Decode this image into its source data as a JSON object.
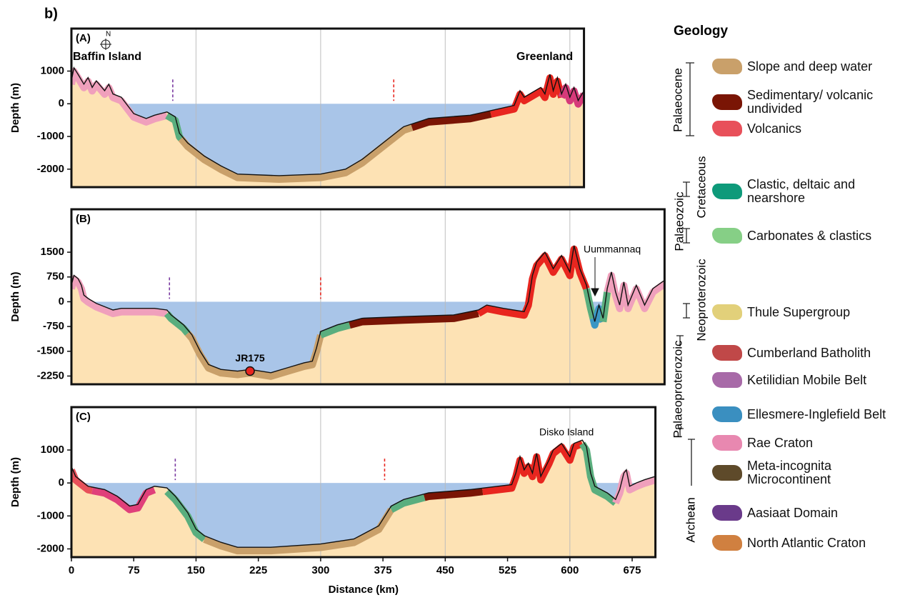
{
  "figure_label": "b)",
  "chart_data": [
    {
      "type": "profile",
      "title": "(A)",
      "ylabel": "Depth (m)",
      "annotations": [
        "N",
        "Baffin Island",
        "Greenland"
      ],
      "xlim": [
        0,
        617
      ],
      "ylim": [
        -2550,
        2300
      ],
      "yticks": [
        -2000,
        -1000,
        0,
        1000
      ],
      "xgrid": [
        150,
        300,
        450,
        600
      ],
      "x": [
        0,
        3,
        8,
        15,
        20,
        25,
        30,
        40,
        45,
        50,
        60,
        75,
        90,
        100,
        115,
        125,
        130,
        140,
        160,
        180,
        200,
        250,
        300,
        330,
        350,
        380,
        400,
        430,
        480,
        533,
        540,
        545,
        555,
        565,
        570,
        576,
        580,
        585,
        590,
        595,
        600,
        605,
        610,
        617
      ],
      "values": [
        700,
        1100,
        900,
        600,
        800,
        500,
        700,
        400,
        600,
        300,
        200,
        -300,
        -450,
        -350,
        -250,
        -400,
        -900,
        -1200,
        -1600,
        -1900,
        -2150,
        -2200,
        -2150,
        -2000,
        -1700,
        -1100,
        -700,
        -450,
        -350,
        -50,
        400,
        200,
        350,
        500,
        300,
        900,
        400,
        800,
        300,
        600,
        200,
        500,
        100,
        400
      ],
      "segments": [
        {
          "x": [
            0,
            115
          ],
          "color": "#f0a0bc"
        },
        {
          "x": [
            115,
            132
          ],
          "color": "#5aae7e"
        },
        {
          "x": [
            132,
            410
          ],
          "color": "#c9a06a"
        },
        {
          "x": [
            410,
            505
          ],
          "color": "#7a1505"
        },
        {
          "x": [
            505,
            590
          ],
          "color": "#e8261f"
        },
        {
          "x": [
            590,
            617
          ],
          "color": "#d63a7a"
        }
      ],
      "markers": [
        {
          "x": 122,
          "color": "#7a3aa0"
        },
        {
          "x": 388,
          "color": "#e8261f"
        }
      ]
    },
    {
      "type": "profile",
      "title": "(B)",
      "ylabel": "Depth (m)",
      "annotations": [
        "Uummannaq"
      ],
      "point": {
        "label": "JR175",
        "x": 215,
        "y": -2100,
        "color": "#e8261f"
      },
      "xlim": [
        0,
        714
      ],
      "ylim": [
        -2500,
        2800
      ],
      "yticks": [
        -2250,
        -1500,
        -750,
        0,
        750,
        1500
      ],
      "xgrid": [
        150,
        300,
        450,
        600
      ],
      "x": [
        0,
        3,
        8,
        12,
        15,
        20,
        30,
        40,
        50,
        60,
        100,
        115,
        120,
        135,
        145,
        155,
        165,
        180,
        200,
        215,
        240,
        260,
        280,
        290,
        295,
        300,
        320,
        350,
        400,
        460,
        490,
        500,
        520,
        545,
        550,
        555,
        560,
        570,
        580,
        590,
        600,
        605,
        612,
        620,
        625,
        630,
        635,
        640,
        645,
        650,
        655,
        660,
        665,
        670,
        680,
        690,
        700,
        714
      ],
      "values": [
        500,
        800,
        700,
        500,
        200,
        100,
        -50,
        -150,
        -250,
        -200,
        -200,
        -250,
        -400,
        -700,
        -1000,
        -1500,
        -1900,
        -2050,
        -2100,
        -2050,
        -2150,
        -2000,
        -1850,
        -1800,
        -1400,
        -900,
        -700,
        -500,
        -450,
        -400,
        -250,
        -100,
        -200,
        -300,
        0,
        800,
        1200,
        1500,
        1000,
        1400,
        900,
        1700,
        1000,
        500,
        -100,
        -600,
        -100,
        -500,
        400,
        900,
        300,
        -100,
        600,
        -100,
        500,
        -100,
        400,
        650
      ],
      "segments": [
        {
          "x": [
            0,
            115
          ],
          "color": "#f0a0bc"
        },
        {
          "x": [
            115,
            140
          ],
          "color": "#5aae7e"
        },
        {
          "x": [
            140,
            300
          ],
          "color": "#c9a06a"
        },
        {
          "x": [
            300,
            335
          ],
          "color": "#5aae7e"
        },
        {
          "x": [
            335,
            490
          ],
          "color": "#7a1505"
        },
        {
          "x": [
            490,
            620
          ],
          "color": "#e8261f"
        },
        {
          "x": [
            620,
            628
          ],
          "color": "#5aae7e"
        },
        {
          "x": [
            628,
            640
          ],
          "color": "#3a96c4"
        },
        {
          "x": [
            640,
            645
          ],
          "color": "#5aae7e"
        },
        {
          "x": [
            645,
            714
          ],
          "color": "#f0a0bc"
        }
      ],
      "markers": [
        {
          "x": 118,
          "color": "#7a3aa0"
        },
        {
          "x": 300,
          "color": "#e8261f"
        }
      ]
    },
    {
      "type": "profile",
      "title": "(C)",
      "ylabel": "Depth (m)",
      "xlabel": "Distance (km)",
      "annotations": [
        "Disko Island"
      ],
      "xlim": [
        0,
        703
      ],
      "ylim": [
        -2250,
        2300
      ],
      "yticks": [
        -2000,
        -1000,
        0,
        1000
      ],
      "xgrid": [
        150,
        300,
        450,
        600
      ],
      "xticks": [
        0,
        75,
        150,
        225,
        300,
        375,
        450,
        525,
        600,
        675
      ],
      "x": [
        0,
        5,
        10,
        20,
        40,
        55,
        70,
        80,
        90,
        100,
        115,
        125,
        140,
        150,
        160,
        180,
        200,
        240,
        300,
        340,
        370,
        385,
        400,
        430,
        480,
        530,
        535,
        540,
        545,
        550,
        555,
        560,
        565,
        575,
        580,
        590,
        600,
        605,
        615,
        620,
        625,
        630,
        645,
        655,
        660,
        665,
        668,
        672,
        680,
        690,
        703
      ],
      "values": [
        500,
        200,
        100,
        -100,
        -200,
        -400,
        -700,
        -650,
        -200,
        -100,
        -150,
        -400,
        -900,
        -1400,
        -1600,
        -1800,
        -1950,
        -1950,
        -1850,
        -1700,
        -1300,
        -700,
        -500,
        -300,
        -200,
        -50,
        300,
        800,
        400,
        600,
        300,
        900,
        200,
        700,
        1000,
        1200,
        800,
        1200,
        1300,
        1100,
        300,
        -100,
        -300,
        -500,
        -200,
        300,
        400,
        -100,
        0,
        100,
        200
      ],
      "segments": [
        {
          "x": [
            0,
            25
          ],
          "color": "#e8505a"
        },
        {
          "x": [
            25,
            100
          ],
          "color": "#e0407a"
        },
        {
          "x": [
            115,
            160
          ],
          "color": "#5aae7e"
        },
        {
          "x": [
            160,
            385
          ],
          "color": "#c9a06a"
        },
        {
          "x": [
            385,
            425
          ],
          "color": "#5aae7e"
        },
        {
          "x": [
            425,
            495
          ],
          "color": "#7a1505"
        },
        {
          "x": [
            495,
            615
          ],
          "color": "#e8261f"
        },
        {
          "x": [
            615,
            655
          ],
          "color": "#5aae7e"
        },
        {
          "x": [
            655,
            703
          ],
          "color": "#f0a0bc"
        }
      ],
      "markers": [
        {
          "x": 125,
          "color": "#7a3aa0"
        },
        {
          "x": 377,
          "color": "#e8261f"
        }
      ]
    }
  ],
  "legend": {
    "title": "Geology",
    "items": [
      {
        "name": "Slope and deep water",
        "color": "#c9a06a"
      },
      {
        "name": "Sedimentary/ volcanic undivided",
        "color": "#7a1505"
      },
      {
        "name": "Volcanics",
        "color": "#e8505a"
      },
      {
        "name": "Clastic, deltaic and nearshore",
        "color": "#0e9a7a"
      },
      {
        "name": "Carbonates & clastics",
        "color": "#86cf86"
      },
      {
        "name": "Thule Supergroup",
        "color": "#e2d07a"
      },
      {
        "name": "Cumberland Batholith",
        "color": "#c04848"
      },
      {
        "name": "Ketilidian Mobile Belt",
        "color": "#a86aa8"
      },
      {
        "name": "Ellesmere-Inglefield Belt",
        "color": "#3a8fc0"
      },
      {
        "name": "Rae Craton",
        "color": "#e888b0"
      },
      {
        "name": "Meta-incognita Microcontinent",
        "color": "#5e4a2a"
      },
      {
        "name": "Aasiaat Domain",
        "color": "#6a3a8a"
      },
      {
        "name": "North Atlantic Craton",
        "color": "#d08040"
      }
    ],
    "eras": [
      "Palaeocene",
      "Cretaceous",
      "Palaeozoic",
      "Neoproterozoic",
      "Palaeoproterozoic",
      "Archean"
    ]
  }
}
